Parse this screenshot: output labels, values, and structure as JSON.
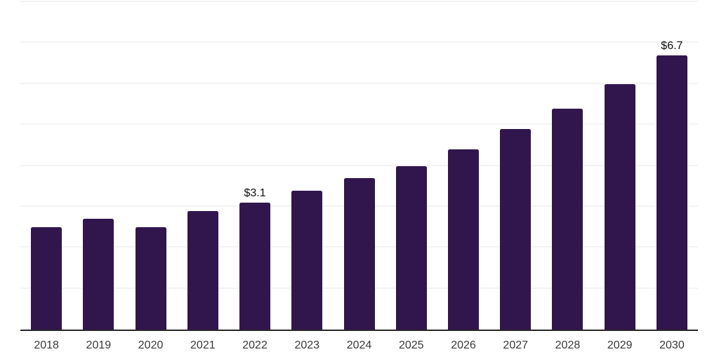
{
  "chart_data": {
    "type": "bar",
    "title": "",
    "xlabel": "",
    "ylabel": "",
    "categories": [
      "2018",
      "2019",
      "2020",
      "2021",
      "2022",
      "2023",
      "2024",
      "2025",
      "2026",
      "2027",
      "2028",
      "2029",
      "2030"
    ],
    "values": [
      2.5,
      2.7,
      2.5,
      2.9,
      3.1,
      3.4,
      3.7,
      4.0,
      4.4,
      4.9,
      5.4,
      6.0,
      6.7
    ],
    "data_labels": {
      "2022": "$3.1",
      "2030": "$6.7"
    },
    "ylim": [
      0,
      8
    ],
    "gridline_step": 1,
    "grid": "horizontal-only",
    "legend": "none",
    "y_tick_labels_shown": false,
    "colors": {
      "bar": "#31164d",
      "axis_line": "#262626",
      "gridline": "#f3f3f3",
      "x_tick_label": "#3a3a3a",
      "data_label": "#0f0f0f",
      "background": "#ffffff"
    }
  }
}
